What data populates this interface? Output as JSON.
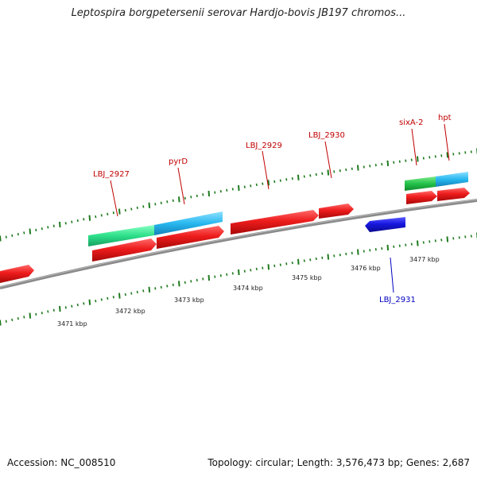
{
  "title": "Leptospira borgpetersenii serovar Hardjo-bovis JB197 chromos...",
  "footer": {
    "accession": "Accession: NC_008510",
    "summary": "Topology: circular; Length: 3,576,473 bp; Genes: 2,687"
  },
  "colors": {
    "forward_gene": "#e8141a",
    "reverse_gene": "#1414d8",
    "feature_green": "#22c24a",
    "feature_teal": "#2de08a",
    "feature_cyan": "#28b8f0",
    "tick": "#1e7a1e",
    "backbone": "#8a8a8a",
    "forward_label": "#c00000",
    "reverse_label": "#0000c0"
  },
  "scale_labels": [
    "3471 kbp",
    "3472 kbp",
    "3473 kbp",
    "3474 kbp",
    "3475 kbp",
    "3476 kbp",
    "3477 kbp"
  ],
  "genes": [
    {
      "label": "LBJ_2927",
      "strand": "forward"
    },
    {
      "label": "pyrD",
      "strand": "forward"
    },
    {
      "label": "LBJ_2929",
      "strand": "forward"
    },
    {
      "label": "LBJ_2930",
      "strand": "forward"
    },
    {
      "label": "sixA-2",
      "strand": "forward"
    },
    {
      "label": "hpt",
      "strand": "forward"
    },
    {
      "label": "LBJ_2931",
      "strand": "reverse"
    }
  ]
}
